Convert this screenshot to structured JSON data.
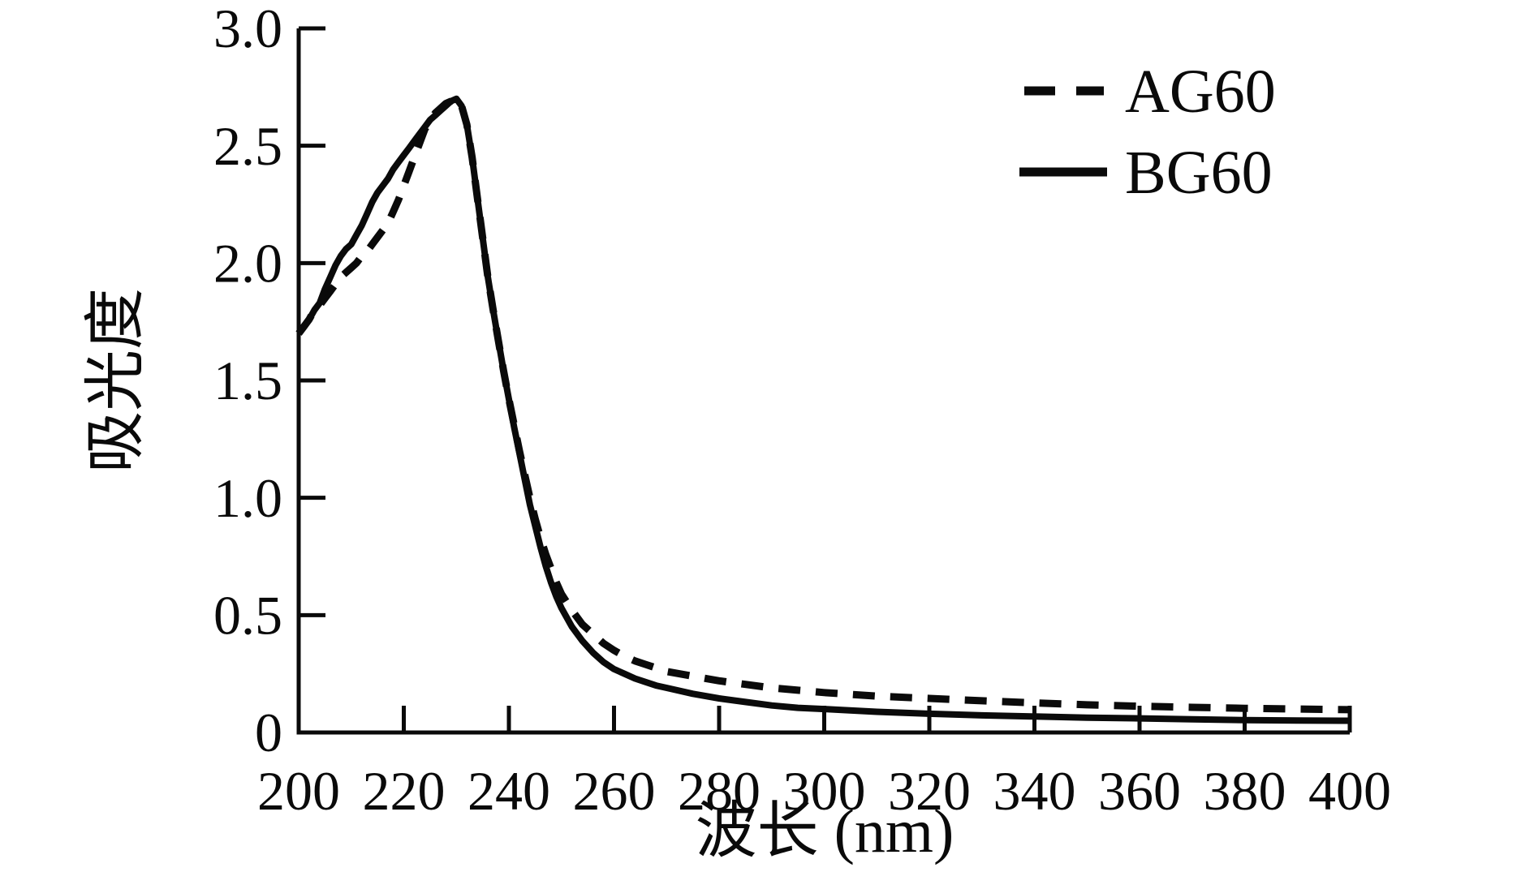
{
  "figure": {
    "background_color": "#ffffff",
    "line_color": "#0a0a0a"
  },
  "legend": {
    "position": "top-right",
    "items": [
      {
        "label": "AG60",
        "line_style": "dashed"
      },
      {
        "label": "BG60",
        "line_style": "solid"
      }
    ]
  },
  "chart_data": {
    "type": "line",
    "title": "",
    "xlabel": "波长 (nm)",
    "ylabel": "吸光度",
    "xlim": [
      200,
      400
    ],
    "ylim": [
      0,
      3.0
    ],
    "grid": false,
    "x_ticks": [
      {
        "v": 200,
        "label": "200"
      },
      {
        "v": 220,
        "label": "220"
      },
      {
        "v": 240,
        "label": "240"
      },
      {
        "v": 260,
        "label": "260"
      },
      {
        "v": 280,
        "label": "280"
      },
      {
        "v": 300,
        "label": "300"
      },
      {
        "v": 320,
        "label": "320"
      },
      {
        "v": 340,
        "label": "340"
      },
      {
        "v": 360,
        "label": "360"
      },
      {
        "v": 380,
        "label": "380"
      },
      {
        "v": 400,
        "label": "400"
      }
    ],
    "y_ticks": [
      {
        "v": 3.0,
        "label": "3.0"
      },
      {
        "v": 2.5,
        "label": "2.5"
      },
      {
        "v": 2.0,
        "label": "2.0"
      },
      {
        "v": 1.5,
        "label": "1.5"
      },
      {
        "v": 1.0,
        "label": "1.0"
      },
      {
        "v": 0.5,
        "label": "0.5"
      },
      {
        "v": 0.0,
        "label": "0"
      }
    ],
    "series": [
      {
        "name": "AG60",
        "line_style": "dashed",
        "color": "#0a0a0a",
        "points": [
          [
            200,
            1.7
          ],
          [
            201,
            1.73
          ],
          [
            202,
            1.76
          ],
          [
            203,
            1.8
          ],
          [
            204,
            1.82
          ],
          [
            205,
            1.85
          ],
          [
            206,
            1.88
          ],
          [
            207,
            1.91
          ],
          [
            208,
            1.94
          ],
          [
            209,
            1.96
          ],
          [
            210,
            1.98
          ],
          [
            211,
            2.0
          ],
          [
            212,
            2.03
          ],
          [
            213,
            2.05
          ],
          [
            214,
            2.08
          ],
          [
            215,
            2.11
          ],
          [
            216,
            2.14
          ],
          [
            217,
            2.17
          ],
          [
            218,
            2.22
          ],
          [
            219,
            2.27
          ],
          [
            220,
            2.33
          ],
          [
            221,
            2.39
          ],
          [
            222,
            2.45
          ],
          [
            223,
            2.51
          ],
          [
            224,
            2.57
          ],
          [
            225,
            2.61
          ],
          [
            226,
            2.64
          ],
          [
            227,
            2.66
          ],
          [
            228,
            2.68
          ],
          [
            229,
            2.69
          ],
          [
            230,
            2.7
          ],
          [
            231,
            2.67
          ],
          [
            232,
            2.59
          ],
          [
            233,
            2.45
          ],
          [
            234,
            2.28
          ],
          [
            235,
            2.11
          ],
          [
            236,
            1.94
          ],
          [
            237,
            1.8
          ],
          [
            238,
            1.67
          ],
          [
            239,
            1.54
          ],
          [
            240,
            1.42
          ],
          [
            241,
            1.31
          ],
          [
            242,
            1.2
          ],
          [
            243,
            1.1
          ],
          [
            244,
            1.0
          ],
          [
            245,
            0.91
          ],
          [
            246,
            0.83
          ],
          [
            247,
            0.76
          ],
          [
            248,
            0.7
          ],
          [
            249,
            0.64
          ],
          [
            250,
            0.59
          ],
          [
            252,
            0.52
          ],
          [
            254,
            0.46
          ],
          [
            256,
            0.42
          ],
          [
            258,
            0.38
          ],
          [
            260,
            0.35
          ],
          [
            262,
            0.325
          ],
          [
            264,
            0.305
          ],
          [
            266,
            0.29
          ],
          [
            268,
            0.275
          ],
          [
            270,
            0.26
          ],
          [
            275,
            0.24
          ],
          [
            280,
            0.22
          ],
          [
            285,
            0.205
          ],
          [
            290,
            0.19
          ],
          [
            295,
            0.18
          ],
          [
            300,
            0.17
          ],
          [
            310,
            0.155
          ],
          [
            320,
            0.145
          ],
          [
            330,
            0.135
          ],
          [
            340,
            0.126
          ],
          [
            350,
            0.118
          ],
          [
            360,
            0.112
          ],
          [
            370,
            0.107
          ],
          [
            380,
            0.103
          ],
          [
            390,
            0.1
          ],
          [
            400,
            0.097
          ]
        ]
      },
      {
        "name": "BG60",
        "line_style": "solid",
        "color": "#0a0a0a",
        "points": [
          [
            200,
            1.7
          ],
          [
            201,
            1.73
          ],
          [
            202,
            1.76
          ],
          [
            203,
            1.8
          ],
          [
            204,
            1.83
          ],
          [
            205,
            1.89
          ],
          [
            206,
            1.94
          ],
          [
            207,
            1.99
          ],
          [
            208,
            2.03
          ],
          [
            209,
            2.06
          ],
          [
            210,
            2.08
          ],
          [
            211,
            2.12
          ],
          [
            212,
            2.16
          ],
          [
            213,
            2.21
          ],
          [
            214,
            2.26
          ],
          [
            215,
            2.3
          ],
          [
            216,
            2.33
          ],
          [
            217,
            2.36
          ],
          [
            218,
            2.4
          ],
          [
            219,
            2.43
          ],
          [
            220,
            2.46
          ],
          [
            221,
            2.49
          ],
          [
            222,
            2.52
          ],
          [
            223,
            2.55
          ],
          [
            224,
            2.58
          ],
          [
            225,
            2.61
          ],
          [
            226,
            2.63
          ],
          [
            227,
            2.65
          ],
          [
            228,
            2.67
          ],
          [
            229,
            2.69
          ],
          [
            230,
            2.7
          ],
          [
            231,
            2.67
          ],
          [
            232,
            2.59
          ],
          [
            233,
            2.45
          ],
          [
            234,
            2.28
          ],
          [
            235,
            2.11
          ],
          [
            236,
            1.94
          ],
          [
            237,
            1.8
          ],
          [
            238,
            1.67
          ],
          [
            239,
            1.54
          ],
          [
            240,
            1.42
          ],
          [
            241,
            1.3
          ],
          [
            242,
            1.19
          ],
          [
            243,
            1.08
          ],
          [
            244,
            0.97
          ],
          [
            245,
            0.88
          ],
          [
            246,
            0.79
          ],
          [
            247,
            0.71
          ],
          [
            248,
            0.64
          ],
          [
            249,
            0.58
          ],
          [
            250,
            0.53
          ],
          [
            252,
            0.45
          ],
          [
            254,
            0.39
          ],
          [
            256,
            0.34
          ],
          [
            258,
            0.3
          ],
          [
            260,
            0.27
          ],
          [
            262,
            0.25
          ],
          [
            264,
            0.23
          ],
          [
            266,
            0.215
          ],
          [
            268,
            0.2
          ],
          [
            270,
            0.19
          ],
          [
            275,
            0.165
          ],
          [
            280,
            0.145
          ],
          [
            285,
            0.13
          ],
          [
            290,
            0.115
          ],
          [
            295,
            0.105
          ],
          [
            300,
            0.1
          ],
          [
            310,
            0.088
          ],
          [
            320,
            0.08
          ],
          [
            330,
            0.073
          ],
          [
            340,
            0.068
          ],
          [
            350,
            0.063
          ],
          [
            360,
            0.06
          ],
          [
            370,
            0.056
          ],
          [
            380,
            0.053
          ],
          [
            390,
            0.051
          ],
          [
            400,
            0.05
          ]
        ]
      }
    ]
  }
}
